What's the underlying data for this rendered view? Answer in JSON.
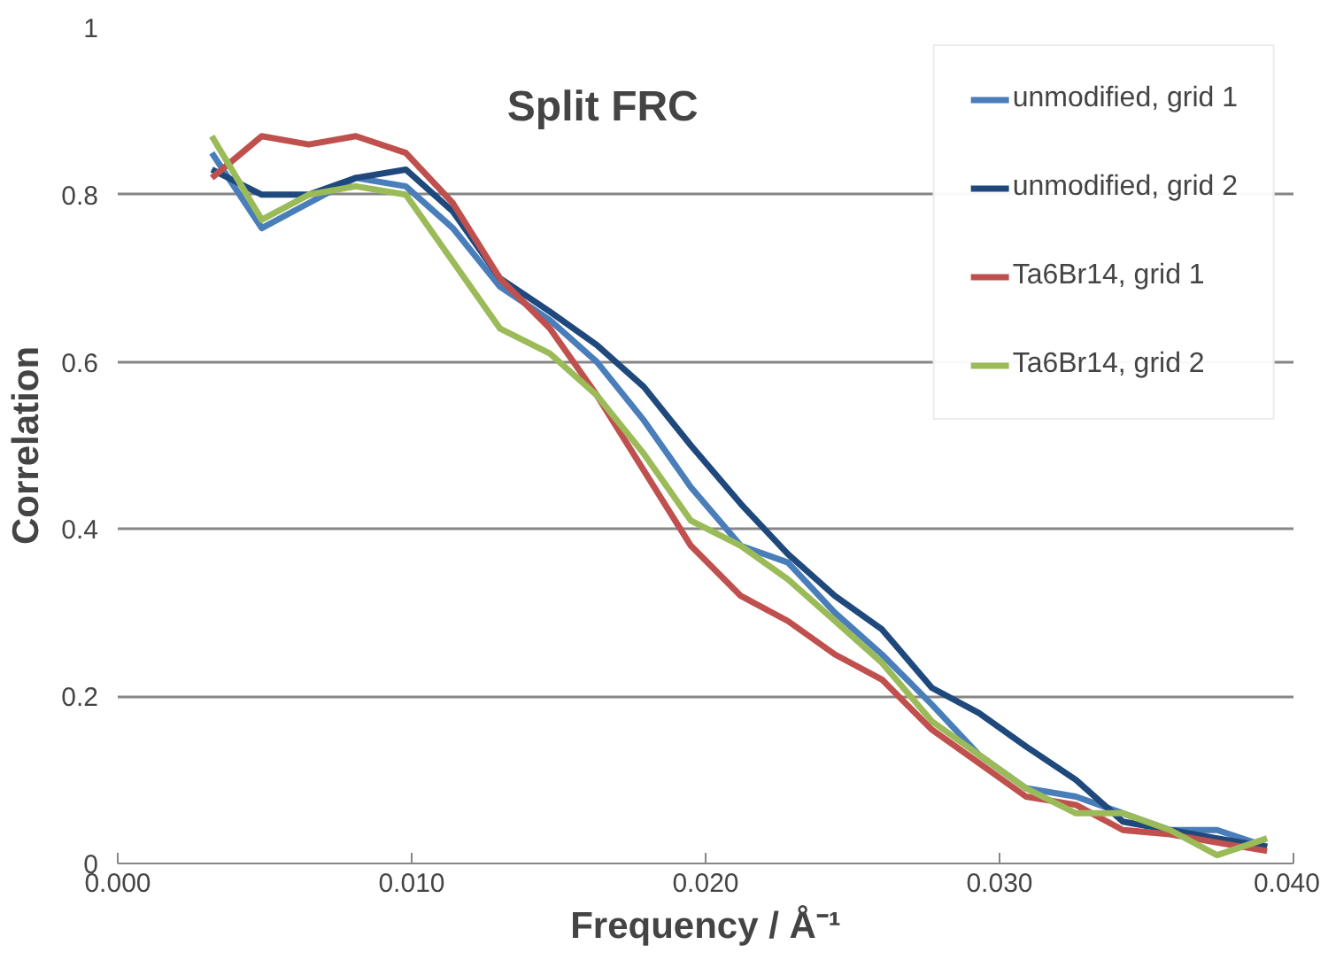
{
  "chart_data": {
    "type": "line",
    "title": "Split FRC",
    "xlabel": "Frequency / Å⁻¹",
    "ylabel": "Correlation",
    "x": [
      0.0032,
      0.0049,
      0.0065,
      0.0081,
      0.0098,
      0.0114,
      0.013,
      0.0147,
      0.0163,
      0.0179,
      0.0195,
      0.0212,
      0.0228,
      0.0244,
      0.026,
      0.0277,
      0.0293,
      0.0309,
      0.0326,
      0.0342,
      0.0358,
      0.0374,
      0.0391
    ],
    "series": [
      {
        "name": "unmodified, grid 1",
        "color": "#4a7ebb",
        "values": [
          0.85,
          0.76,
          0.79,
          0.82,
          0.81,
          0.76,
          0.69,
          0.65,
          0.6,
          0.53,
          0.45,
          0.38,
          0.36,
          0.3,
          0.25,
          0.19,
          0.13,
          0.09,
          0.08,
          0.06,
          0.04,
          0.04,
          0.02
        ]
      },
      {
        "name": "unmodified, grid 2",
        "color": "#1f497d",
        "values": [
          0.83,
          0.8,
          0.8,
          0.82,
          0.83,
          0.78,
          0.7,
          0.66,
          0.62,
          0.57,
          0.5,
          0.43,
          0.37,
          0.32,
          0.28,
          0.21,
          0.18,
          0.14,
          0.1,
          0.05,
          0.04,
          0.03,
          0.02
        ]
      },
      {
        "name": "Ta6Br14, grid 1",
        "color": "#c0504d",
        "values": [
          0.82,
          0.87,
          0.86,
          0.87,
          0.85,
          0.79,
          0.7,
          0.64,
          0.56,
          0.47,
          0.38,
          0.32,
          0.29,
          0.25,
          0.22,
          0.16,
          0.12,
          0.08,
          0.07,
          0.04,
          0.035,
          0.025,
          0.015
        ]
      },
      {
        "name": "Ta6Br14, grid 2",
        "color": "#9bbb59",
        "values": [
          0.87,
          0.77,
          0.8,
          0.81,
          0.8,
          0.72,
          0.64,
          0.61,
          0.56,
          0.49,
          0.41,
          0.38,
          0.34,
          0.29,
          0.24,
          0.17,
          0.13,
          0.09,
          0.06,
          0.06,
          0.04,
          0.01,
          0.03
        ]
      }
    ],
    "xlim": [
      0,
      0.04
    ],
    "xticks": [
      {
        "value": 0,
        "label": "0.000"
      },
      {
        "value": 0.01,
        "label": "0.010"
      },
      {
        "value": 0.02,
        "label": "0.020"
      },
      {
        "value": 0.03,
        "label": "0.030"
      },
      {
        "value": 0.04,
        "label": "0.040"
      }
    ],
    "ylim": [
      0,
      1
    ],
    "yticks": [
      0,
      0.2,
      0.4,
      0.6,
      0.8,
      1
    ],
    "grid": "y",
    "legend": "top right",
    "marker": "none",
    "line_style": "solid"
  }
}
